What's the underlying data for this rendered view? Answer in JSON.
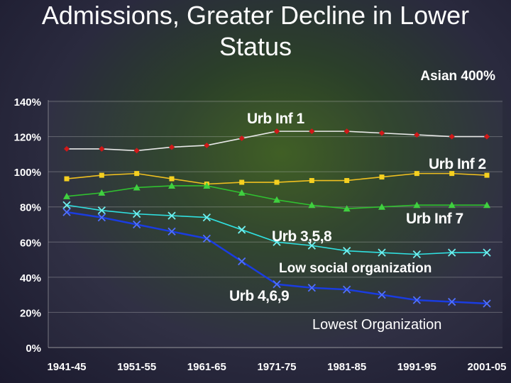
{
  "title": {
    "line1": "",
    "line2": "Admissions, Greater Decline in Lower",
    "line3": "Status"
  },
  "annotations": {
    "asian": "Asian 400%",
    "low_social": "Low social organization",
    "lowest": "Lowest Organization"
  },
  "colors": {
    "background_center": "#3a5a1e",
    "background_edge": "#1b1a2e"
  },
  "chart_data": {
    "type": "line",
    "title": "",
    "xlabel": "",
    "ylabel": "",
    "ylim": [
      0,
      140
    ],
    "y_ticks": [
      "0%",
      "20%",
      "40%",
      "60%",
      "80%",
      "100%",
      "120%",
      "140%"
    ],
    "x_ticks": [
      "1941-45",
      "1951-55",
      "1961-65",
      "1971-75",
      "1981-85",
      "1991-95",
      "2001-05"
    ],
    "categories": [
      "1941-45",
      "1946-50",
      "1951-55",
      "1956-60",
      "1961-65",
      "1966-70",
      "1971-75",
      "1976-80",
      "1981-85",
      "1986-90",
      "1991-95",
      "1996-00",
      "2001-05"
    ],
    "series": [
      {
        "name": "Urb Inf 1",
        "color": "#e8e8e8",
        "marker_color": "#d01818",
        "marker": "diamond",
        "values": [
          113,
          113,
          112,
          114,
          115,
          119,
          123,
          123,
          123,
          122,
          121,
          120,
          120
        ]
      },
      {
        "name": "Urb Inf 2",
        "color": "#f0c020",
        "marker_color": "#f5d020",
        "marker": "square",
        "values": [
          96,
          98,
          99,
          96,
          93,
          94,
          94,
          95,
          95,
          97,
          99,
          99,
          98
        ]
      },
      {
        "name": "Urb Inf 7",
        "color": "#30c030",
        "marker_color": "#40d040",
        "marker": "triangle",
        "values": [
          86,
          88,
          91,
          92,
          92,
          88,
          84,
          81,
          79,
          80,
          81,
          81,
          81
        ]
      },
      {
        "name": "Urb 3,5,8",
        "color": "#30e0e0",
        "marker_color": "#70f0f0",
        "marker": "x",
        "values": [
          81,
          78,
          76,
          75,
          74,
          67,
          60,
          58,
          55,
          54,
          53,
          54,
          54
        ]
      },
      {
        "name": "Urb 4,6,9",
        "color": "#1a3ce0",
        "marker_color": "#5070ff",
        "marker": "x",
        "values": [
          77,
          74,
          70,
          66,
          62,
          49,
          36,
          34,
          33,
          30,
          27,
          26,
          25
        ]
      }
    ],
    "grid": true,
    "legend": "none"
  }
}
